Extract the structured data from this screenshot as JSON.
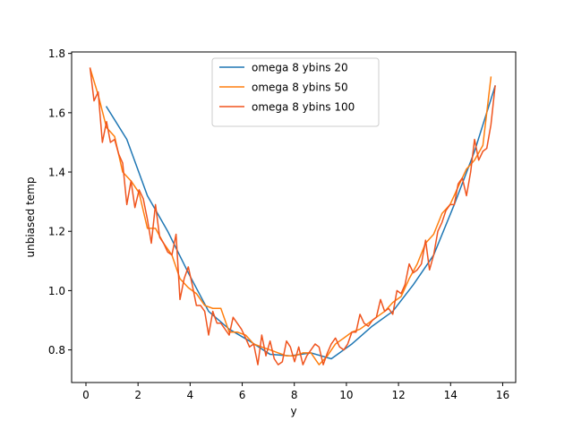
{
  "chart_data": {
    "type": "line",
    "title": "",
    "xlabel": "y",
    "ylabel": "unbiased temp",
    "xlim": [
      -0.55,
      16.5
    ],
    "ylim": [
      0.69,
      1.805
    ],
    "xticks": [
      0,
      2,
      4,
      6,
      8,
      10,
      12,
      14,
      16
    ],
    "yticks": [
      0.8,
      1.0,
      1.2,
      1.4,
      1.6,
      1.8
    ],
    "xtick_labels": [
      "0",
      "2",
      "4",
      "6",
      "8",
      "10",
      "12",
      "14",
      "16"
    ],
    "ytick_labels": [
      "0.8",
      "1.0",
      "1.2",
      "1.4",
      "1.6",
      "1.8"
    ],
    "grid": false,
    "legend_position": "upper-center",
    "series": [
      {
        "name": "omega 8 ybins 20",
        "color": "#1f77b4",
        "x": [
          0.79,
          1.57,
          2.36,
          3.14,
          3.93,
          4.71,
          5.5,
          6.28,
          7.07,
          7.85,
          8.64,
          9.42,
          10.21,
          10.99,
          11.78,
          12.57,
          13.35,
          14.14,
          14.92,
          15.71
        ],
        "y": [
          1.62,
          1.51,
          1.32,
          1.2,
          1.06,
          0.93,
          0.87,
          0.83,
          0.785,
          0.78,
          0.79,
          0.77,
          0.82,
          0.88,
          0.93,
          1.02,
          1.12,
          1.29,
          1.47,
          1.69
        ]
      },
      {
        "name": "omega 8 ybins 50",
        "color": "#ff7f0e",
        "x": [
          0.16,
          0.47,
          0.79,
          1.1,
          1.41,
          1.73,
          2.04,
          2.36,
          2.67,
          2.98,
          3.3,
          3.61,
          3.93,
          4.24,
          4.56,
          4.87,
          5.18,
          5.5,
          5.81,
          6.13,
          6.44,
          6.75,
          7.07,
          7.38,
          7.7,
          8.01,
          8.33,
          8.64,
          8.95,
          9.27,
          9.58,
          9.9,
          10.21,
          10.52,
          10.84,
          11.15,
          11.47,
          11.78,
          12.1,
          12.41,
          12.72,
          13.04,
          13.35,
          13.67,
          13.98,
          14.29,
          14.61,
          14.92,
          15.24,
          15.55
        ],
        "y": [
          1.75,
          1.66,
          1.55,
          1.52,
          1.4,
          1.37,
          1.33,
          1.21,
          1.21,
          1.16,
          1.12,
          1.04,
          1.01,
          0.99,
          0.95,
          0.94,
          0.94,
          0.86,
          0.86,
          0.85,
          0.82,
          0.81,
          0.8,
          0.79,
          0.78,
          0.78,
          0.79,
          0.79,
          0.75,
          0.78,
          0.82,
          0.84,
          0.86,
          0.87,
          0.89,
          0.91,
          0.93,
          0.96,
          0.98,
          1.04,
          1.09,
          1.16,
          1.19,
          1.26,
          1.29,
          1.35,
          1.41,
          1.44,
          1.49,
          1.72
        ]
      },
      {
        "name": "omega 8 ybins 100",
        "color": "#f0541e",
        "x": [
          0.16,
          0.31,
          0.47,
          0.63,
          0.79,
          0.94,
          1.1,
          1.26,
          1.41,
          1.57,
          1.73,
          1.88,
          2.04,
          2.2,
          2.36,
          2.51,
          2.67,
          2.83,
          2.98,
          3.14,
          3.3,
          3.46,
          3.61,
          3.77,
          3.93,
          4.08,
          4.24,
          4.4,
          4.56,
          4.71,
          4.87,
          5.03,
          5.18,
          5.34,
          5.5,
          5.65,
          5.81,
          5.97,
          6.13,
          6.28,
          6.44,
          6.6,
          6.75,
          6.91,
          7.07,
          7.23,
          7.38,
          7.54,
          7.7,
          7.85,
          8.01,
          8.17,
          8.33,
          8.48,
          8.64,
          8.8,
          8.95,
          9.11,
          9.27,
          9.42,
          9.58,
          9.74,
          9.9,
          10.05,
          10.21,
          10.37,
          10.52,
          10.68,
          10.84,
          11.0,
          11.15,
          11.31,
          11.47,
          11.62,
          11.78,
          11.94,
          12.1,
          12.25,
          12.41,
          12.57,
          12.72,
          12.88,
          13.04,
          13.19,
          13.35,
          13.51,
          13.67,
          13.82,
          13.98,
          14.14,
          14.29,
          14.45,
          14.61,
          14.77,
          14.92,
          15.08,
          15.24,
          15.39,
          15.55,
          15.71
        ],
        "y": [
          1.75,
          1.64,
          1.67,
          1.5,
          1.57,
          1.5,
          1.51,
          1.46,
          1.43,
          1.29,
          1.37,
          1.28,
          1.34,
          1.31,
          1.24,
          1.16,
          1.29,
          1.18,
          1.16,
          1.13,
          1.12,
          1.19,
          0.97,
          1.04,
          1.08,
          1.02,
          0.95,
          0.95,
          0.93,
          0.85,
          0.93,
          0.89,
          0.89,
          0.87,
          0.85,
          0.91,
          0.89,
          0.87,
          0.84,
          0.81,
          0.82,
          0.75,
          0.85,
          0.78,
          0.83,
          0.77,
          0.75,
          0.76,
          0.83,
          0.81,
          0.76,
          0.81,
          0.75,
          0.78,
          0.8,
          0.82,
          0.81,
          0.75,
          0.79,
          0.82,
          0.84,
          0.81,
          0.8,
          0.82,
          0.86,
          0.86,
          0.92,
          0.89,
          0.88,
          0.9,
          0.91,
          0.97,
          0.93,
          0.94,
          0.92,
          1.0,
          0.99,
          1.02,
          1.09,
          1.06,
          1.07,
          1.09,
          1.17,
          1.07,
          1.12,
          1.2,
          1.23,
          1.27,
          1.29,
          1.29,
          1.36,
          1.38,
          1.32,
          1.4,
          1.51,
          1.44,
          1.47,
          1.48,
          1.56,
          1.69
        ]
      }
    ]
  }
}
